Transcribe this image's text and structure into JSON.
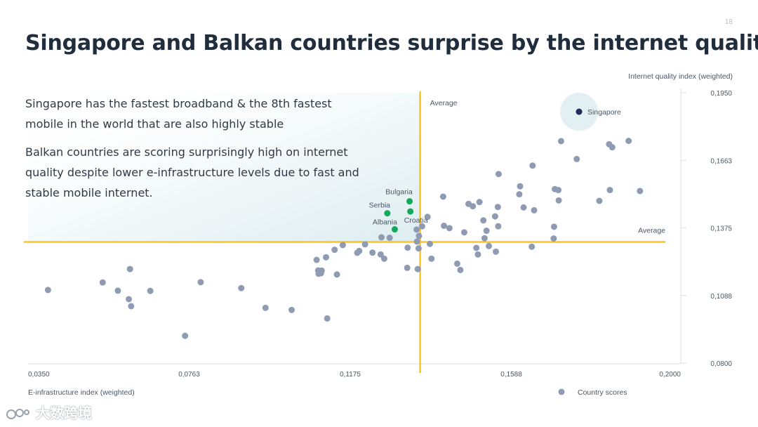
{
  "page_number": "18",
  "title": "Singapore and Balkan countries surprise by the internet quality",
  "annotations": [
    "Singapore has the fastest broadband & the 8th fastest mobile in the world that are also highly stable",
    "Balkan countries are scoring surprisingly high on internet quality despite lower e-infrastructure levels due to fast and stable mobile internet."
  ],
  "watermark": "大数跨境",
  "colors": {
    "title": "#1f2d3d",
    "point": "#8f9bb3",
    "highlight_balkan": "#13a85a",
    "highlight_singapore": "#1f2e5a",
    "singapore_halo": "#e3f0f3",
    "average_line": "#f7c21a",
    "axis": "#d9dde2",
    "axis_text": "#4a5766",
    "quadrant_shade": "#dcecef"
  },
  "chart_data": {
    "type": "scatter",
    "xlabel": "E-infrastructure index (weighted)",
    "ylabel": "Internet quality index (weighted)",
    "xlim": [
      0.035,
      0.2
    ],
    "ylim": [
      0.08,
      0.195
    ],
    "x_ticks": [
      "0,0350",
      "0,0763",
      "0,1175",
      "0,1588",
      "0,2000"
    ],
    "y_ticks": [
      "0,0800",
      "0,1088",
      "0,1375",
      "0,1663",
      "0,1950"
    ],
    "x_average": 0.1354,
    "y_average": 0.1315,
    "average_label_x": "Average",
    "average_label_y": "Average",
    "legend": "Country scores",
    "legend_position": "bottom-right",
    "grid": false,
    "highlighted": [
      {
        "name": "Singapore",
        "x": 0.1761,
        "y": 0.1869,
        "group": "singapore"
      },
      {
        "name": "Bulgaria",
        "x": 0.1327,
        "y": 0.1488,
        "group": "balkan"
      },
      {
        "name": "Croatia",
        "x": 0.1329,
        "y": 0.1445,
        "group": "balkan"
      },
      {
        "name": "Serbia",
        "x": 0.127,
        "y": 0.1437,
        "group": "balkan"
      },
      {
        "name": "Albania",
        "x": 0.1289,
        "y": 0.1369,
        "group": "balkan"
      }
    ],
    "points": [
      [
        0.0401,
        0.1111
      ],
      [
        0.0541,
        0.1143
      ],
      [
        0.058,
        0.1108
      ],
      [
        0.0608,
        0.1072
      ],
      [
        0.0611,
        0.12
      ],
      [
        0.0614,
        0.1042
      ],
      [
        0.0663,
        0.1107
      ],
      [
        0.0752,
        0.0916
      ],
      [
        0.0792,
        0.1144
      ],
      [
        0.0896,
        0.1119
      ],
      [
        0.0958,
        0.1035
      ],
      [
        0.1025,
        0.1026
      ],
      [
        0.1089,
        0.1239
      ],
      [
        0.1093,
        0.1194
      ],
      [
        0.1094,
        0.118
      ],
      [
        0.11,
        0.1182
      ],
      [
        0.1102,
        0.1193
      ],
      [
        0.1113,
        0.125
      ],
      [
        0.1116,
        0.099
      ],
      [
        0.1135,
        0.1282
      ],
      [
        0.1141,
        0.1177
      ],
      [
        0.1156,
        0.1302
      ],
      [
        0.1193,
        0.1269
      ],
      [
        0.1198,
        0.1277
      ],
      [
        0.1213,
        0.1305
      ],
      [
        0.1232,
        0.127
      ],
      [
        0.1253,
        0.1262
      ],
      [
        0.1255,
        0.1335
      ],
      [
        0.1262,
        0.1244
      ],
      [
        0.1276,
        0.1333
      ],
      [
        0.1321,
        0.1205
      ],
      [
        0.1322,
        0.1291
      ],
      [
        0.1345,
        0.1368
      ],
      [
        0.1346,
        0.1317
      ],
      [
        0.1348,
        0.12
      ],
      [
        0.135,
        0.1288
      ],
      [
        0.1351,
        0.1341
      ],
      [
        0.1359,
        0.1382
      ],
      [
        0.1373,
        0.1422
      ],
      [
        0.1379,
        0.1307
      ],
      [
        0.1383,
        0.1244
      ],
      [
        0.1413,
        0.1508
      ],
      [
        0.1415,
        0.1384
      ],
      [
        0.1429,
        0.1374
      ],
      [
        0.1449,
        0.1223
      ],
      [
        0.1457,
        0.1196
      ],
      [
        0.1467,
        0.1356
      ],
      [
        0.1478,
        0.1477
      ],
      [
        0.1489,
        0.1467
      ],
      [
        0.1498,
        0.129
      ],
      [
        0.1502,
        0.1262
      ],
      [
        0.1506,
        0.1485
      ],
      [
        0.1516,
        0.1407
      ],
      [
        0.1519,
        0.1331
      ],
      [
        0.1524,
        0.1363
      ],
      [
        0.153,
        0.1298
      ],
      [
        0.1546,
        0.1424
      ],
      [
        0.1548,
        0.1274
      ],
      [
        0.1553,
        0.1464
      ],
      [
        0.1554,
        0.1382
      ],
      [
        0.1555,
        0.1604
      ],
      [
        0.1608,
        0.1518
      ],
      [
        0.161,
        0.1552
      ],
      [
        0.1619,
        0.1462
      ],
      [
        0.164,
        0.1295
      ],
      [
        0.1642,
        0.164
      ],
      [
        0.1646,
        0.145
      ],
      [
        0.1696,
        0.133
      ],
      [
        0.1697,
        0.138
      ],
      [
        0.1699,
        0.154
      ],
      [
        0.1708,
        0.1536
      ],
      [
        0.1709,
        0.1492
      ],
      [
        0.1715,
        0.1744
      ],
      [
        0.1755,
        0.1668
      ],
      [
        0.1813,
        0.149
      ],
      [
        0.1838,
        0.1731
      ],
      [
        0.184,
        0.1536
      ],
      [
        0.1846,
        0.1718
      ],
      [
        0.1888,
        0.1745
      ],
      [
        0.1917,
        0.1532
      ]
    ]
  }
}
